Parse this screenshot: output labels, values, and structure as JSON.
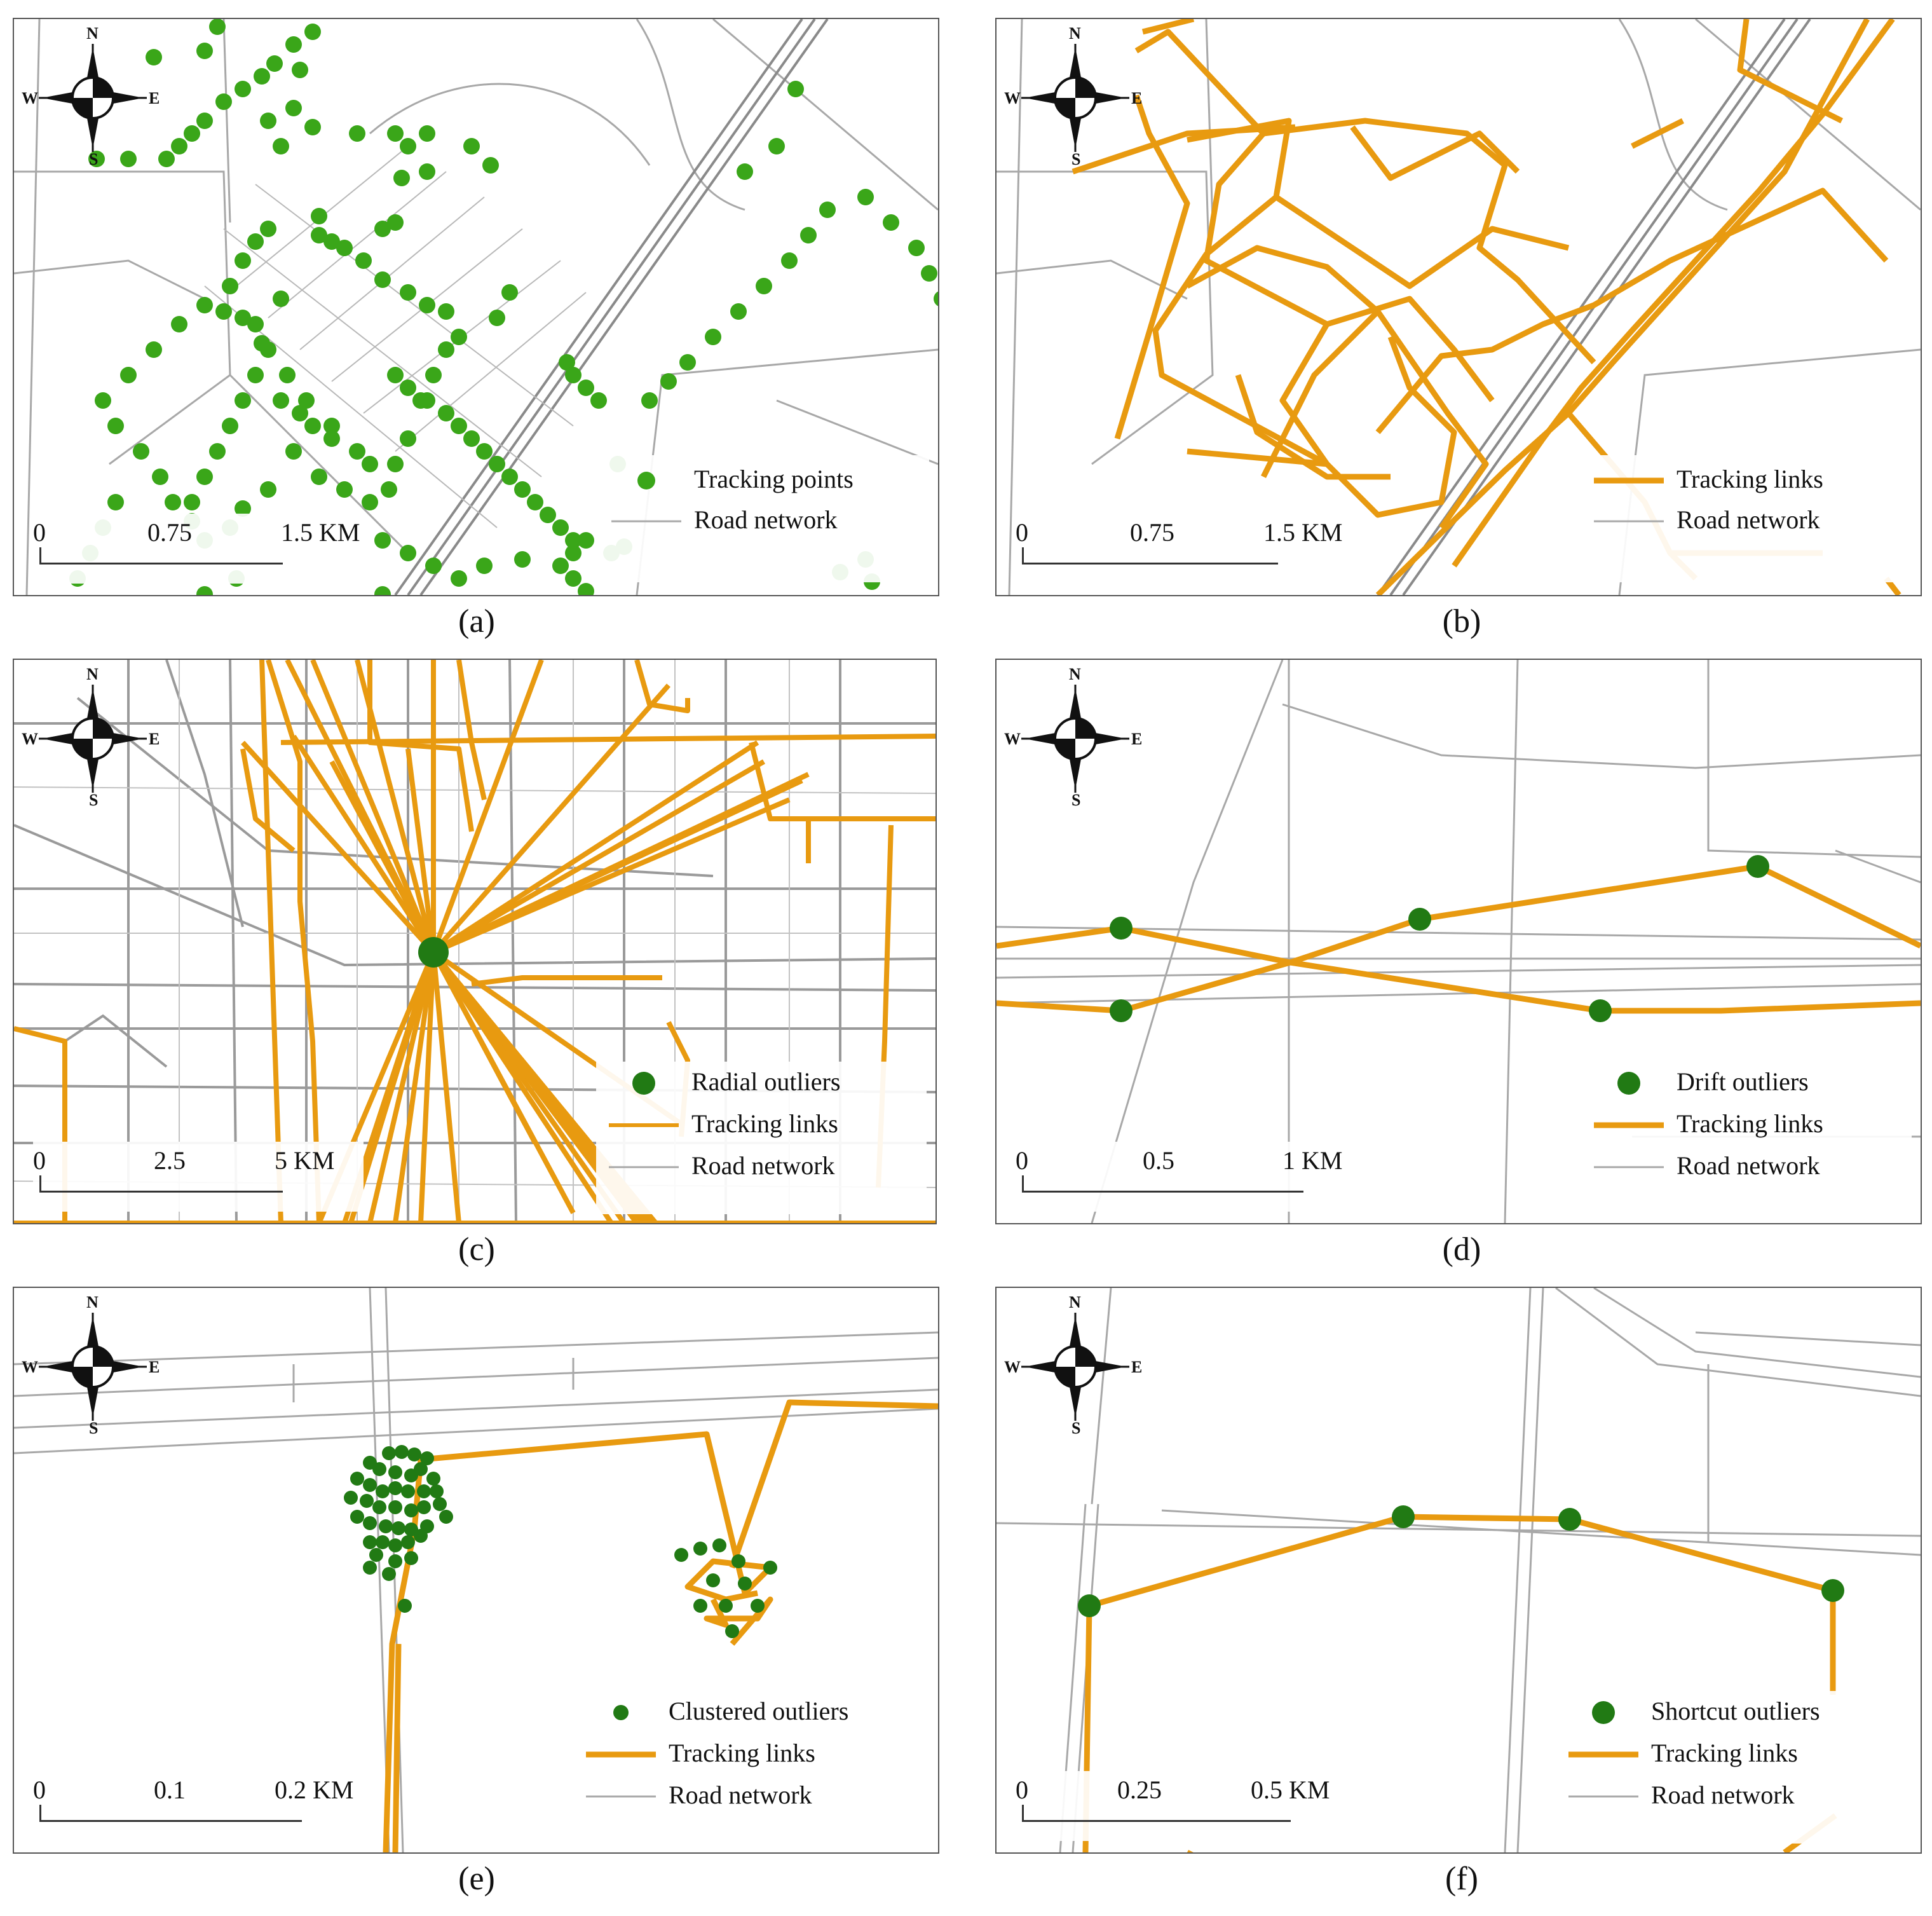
{
  "compass": {
    "n": "N",
    "s": "S",
    "e": "E",
    "w": "W"
  },
  "panels": [
    {
      "caption": "(a)",
      "scale": [
        "0",
        "0.75",
        "1.5 KM"
      ],
      "legend": [
        {
          "label": "Tracking points",
          "symbol": "dot-green"
        },
        {
          "label": "Road network",
          "symbol": "road"
        }
      ]
    },
    {
      "caption": "(b)",
      "scale": [
        "0",
        "0.75",
        "1.5 KM"
      ],
      "legend": [
        {
          "label": "Tracking links",
          "symbol": "orange-line"
        },
        {
          "label": "Road network",
          "symbol": "road"
        }
      ]
    },
    {
      "caption": "(c)",
      "scale": [
        "0",
        "2.5",
        "5 KM"
      ],
      "legend": [
        {
          "label": "Radial outliers",
          "symbol": "dot-dark"
        },
        {
          "label": "Tracking links",
          "symbol": "orange-line"
        },
        {
          "label": "Road network",
          "symbol": "road"
        }
      ]
    },
    {
      "caption": "(d)",
      "scale": [
        "0",
        "0.5",
        "1 KM"
      ],
      "legend": [
        {
          "label": "Drift outliers",
          "symbol": "dot-dark"
        },
        {
          "label": "Tracking links",
          "symbol": "orange-line"
        },
        {
          "label": "Road network",
          "symbol": "road"
        }
      ]
    },
    {
      "caption": "(e)",
      "scale": [
        "0",
        "0.1",
        "0.2 KM"
      ],
      "legend": [
        {
          "label": "Clustered outliers",
          "symbol": "dot-small"
        },
        {
          "label": "Tracking links",
          "symbol": "orange-line"
        },
        {
          "label": "Road network",
          "symbol": "road"
        }
      ]
    },
    {
      "caption": "(f)",
      "scale": [
        "0",
        "0.25",
        "0.5 KM"
      ],
      "legend": [
        {
          "label": "Shortcut outliers",
          "symbol": "dot-dark"
        },
        {
          "label": "Tracking links",
          "symbol": "orange-line"
        },
        {
          "label": "Road network",
          "symbol": "road"
        }
      ]
    }
  ],
  "colors": {
    "orange": "#E89A10",
    "green": "#3AA619",
    "dark_green": "#217A14",
    "road": "#A8A8A8"
  }
}
